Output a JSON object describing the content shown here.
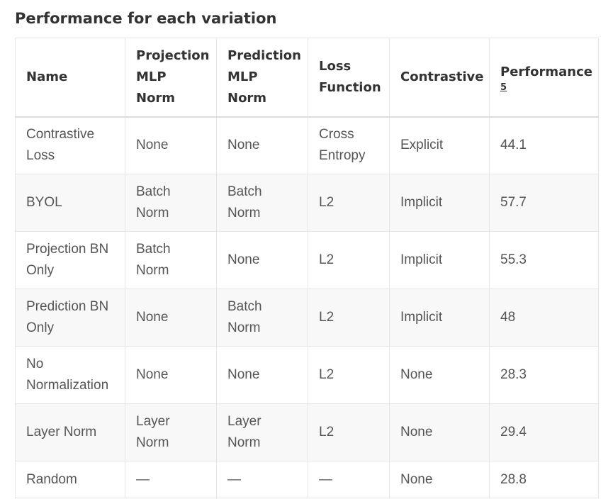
{
  "heading": "Performance for each variation",
  "table": {
    "headers": {
      "name": "Name",
      "projection": "Projection MLP Norm",
      "prediction": "Prediction MLP Norm",
      "loss": "Loss Function",
      "contrastive": "Contrastive",
      "performance": "Performance",
      "performance_footnote": "5"
    },
    "rows": [
      {
        "name": "Contrastive Loss",
        "projection": "None",
        "prediction": "None",
        "loss": "Cross Entropy",
        "contrastive": "Explicit",
        "performance": "44.1"
      },
      {
        "name": "BYOL",
        "projection": "Batch Norm",
        "prediction": "Batch Norm",
        "loss": "L2",
        "contrastive": "Implicit",
        "performance": "57.7"
      },
      {
        "name": "Projection BN Only",
        "projection": "Batch Norm",
        "prediction": "None",
        "loss": "L2",
        "contrastive": "Implicit",
        "performance": "55.3"
      },
      {
        "name": "Prediction BN Only",
        "projection": "None",
        "prediction": "Batch Norm",
        "loss": "L2",
        "contrastive": "Implicit",
        "performance": "48"
      },
      {
        "name": "No Normalization",
        "projection": "None",
        "prediction": "None",
        "loss": "L2",
        "contrastive": "None",
        "performance": "28.3"
      },
      {
        "name": "Layer Norm",
        "projection": "Layer Norm",
        "prediction": "Layer Norm",
        "loss": "L2",
        "contrastive": "None",
        "performance": "29.4"
      },
      {
        "name": "Random",
        "projection": "—",
        "prediction": "—",
        "loss": "—",
        "contrastive": "None",
        "performance": "28.8"
      }
    ]
  }
}
